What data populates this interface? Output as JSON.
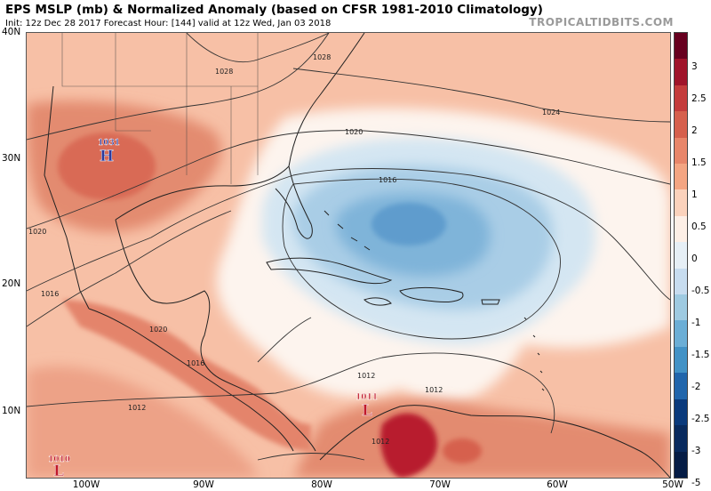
{
  "header": {
    "title": "EPS MSLP (mb) & Normalized Anomaly (based on CFSR 1981-2010 Climatology)",
    "subtitle": "Init: 12z Dec 28 2017   Forecast Hour: [144]   valid at 12z Wed, Jan 03 2018",
    "brand": "TROPICALTIDBITS.COM"
  },
  "axes": {
    "lat_labels": [
      "40N",
      "30N",
      "20N",
      "10N"
    ],
    "lon_labels": [
      "100W",
      "90W",
      "80W",
      "70W",
      "60W",
      "50W"
    ]
  },
  "pressure_centers": [
    {
      "type": "H",
      "value": "1031",
      "color": "#2a3a9e"
    },
    {
      "type": "L",
      "value": "1011",
      "color": "#c0182a"
    },
    {
      "type": "L",
      "value": "1010",
      "color": "#c0182a"
    }
  ],
  "isobar_labels": [
    "1028",
    "1028",
    "1024",
    "1020",
    "1020",
    "1016",
    "1016",
    "1020",
    "1016",
    "1012",
    "1012",
    "1012",
    "1012"
  ],
  "colorbar": {
    "ticks": [
      "3",
      "2.5",
      "2",
      "1.5",
      "1",
      "0.5",
      "0",
      "-0.5",
      "-1",
      "-1.5",
      "-2",
      "-2.5",
      "-3",
      "-5"
    ],
    "colors": [
      "#67001f",
      "#a0142a",
      "#c43c3c",
      "#d6604d",
      "#e8866a",
      "#f4a582",
      "#fbd2bc",
      "#fdefe6",
      "#e6eff6",
      "#c7dcef",
      "#9ecae1",
      "#6baed6",
      "#4292c6",
      "#2166ac",
      "#0a3a7c",
      "#082a5e",
      "#051c45"
    ]
  }
}
